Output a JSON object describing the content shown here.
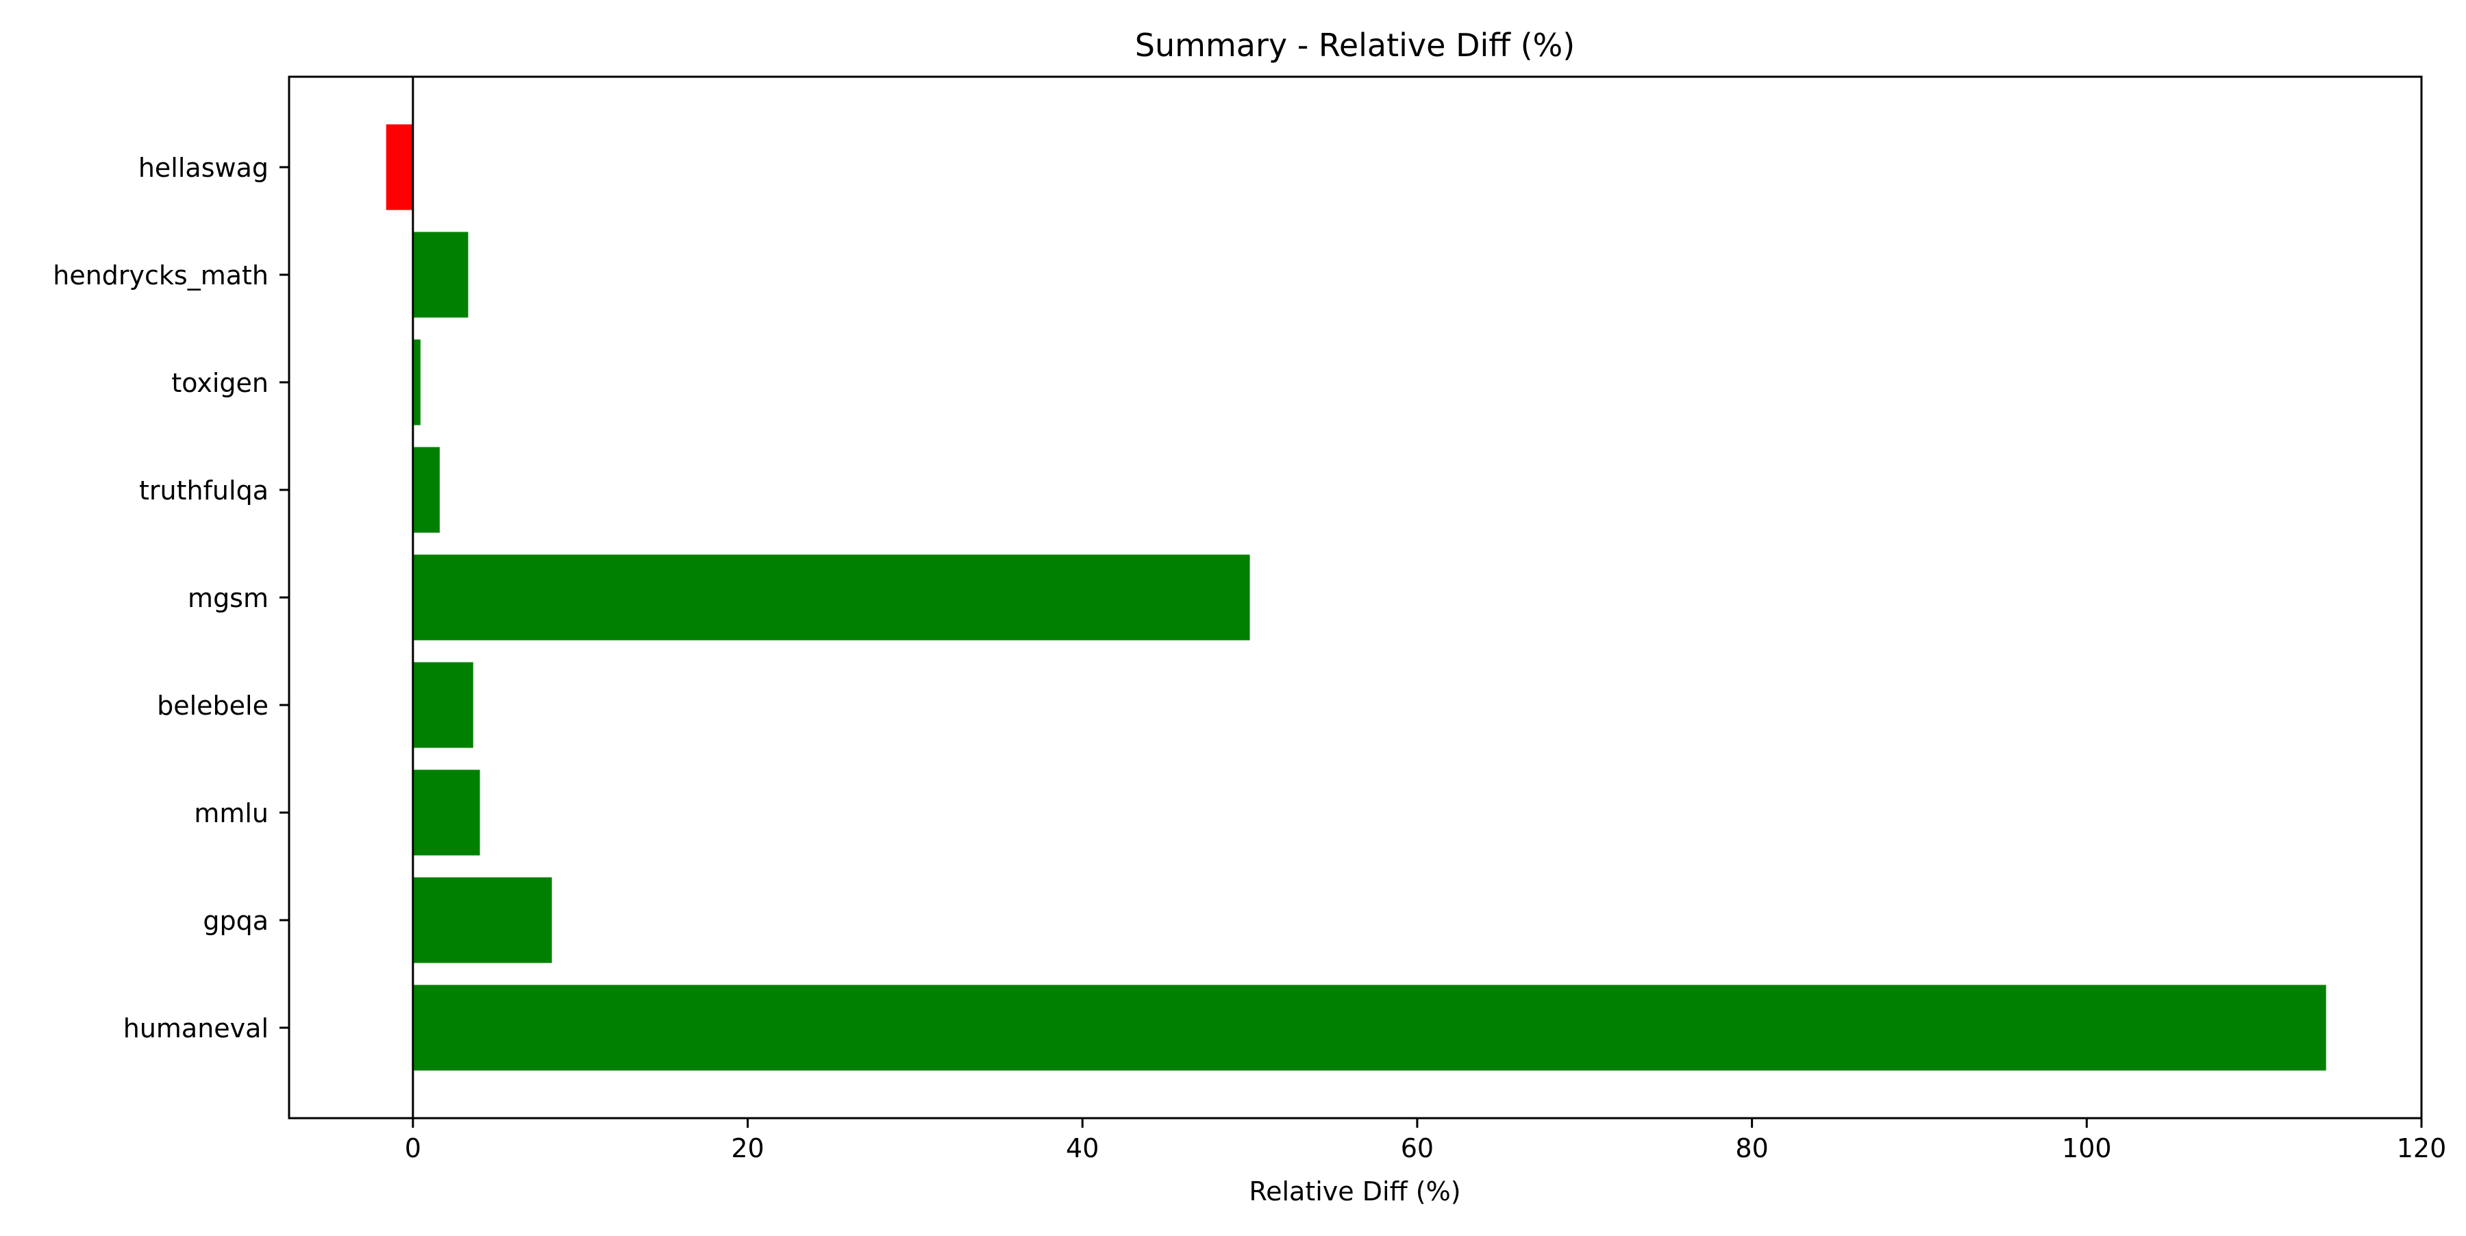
{
  "chart_data": {
    "type": "bar",
    "orientation": "horizontal",
    "title": "Summary - Relative Diff (%)",
    "xlabel": "Relative Diff (%)",
    "ylabel": "",
    "categories": [
      "humaneval",
      "gpqa",
      "mmlu",
      "belebele",
      "mgsm",
      "truthfulqa",
      "toxigen",
      "hendrycks_math",
      "hellaswag"
    ],
    "values": [
      114.3,
      8.3,
      4.0,
      3.6,
      50.0,
      1.6,
      0.45,
      3.3,
      -1.6
    ],
    "xlim": [
      -7.4,
      120
    ],
    "xticks": [
      0,
      20,
      40,
      60,
      80,
      100,
      120
    ],
    "grid": false,
    "legend": null,
    "colors": {
      "positive": "#008000",
      "negative": "#ff0000",
      "zero_line": "#000000"
    }
  }
}
